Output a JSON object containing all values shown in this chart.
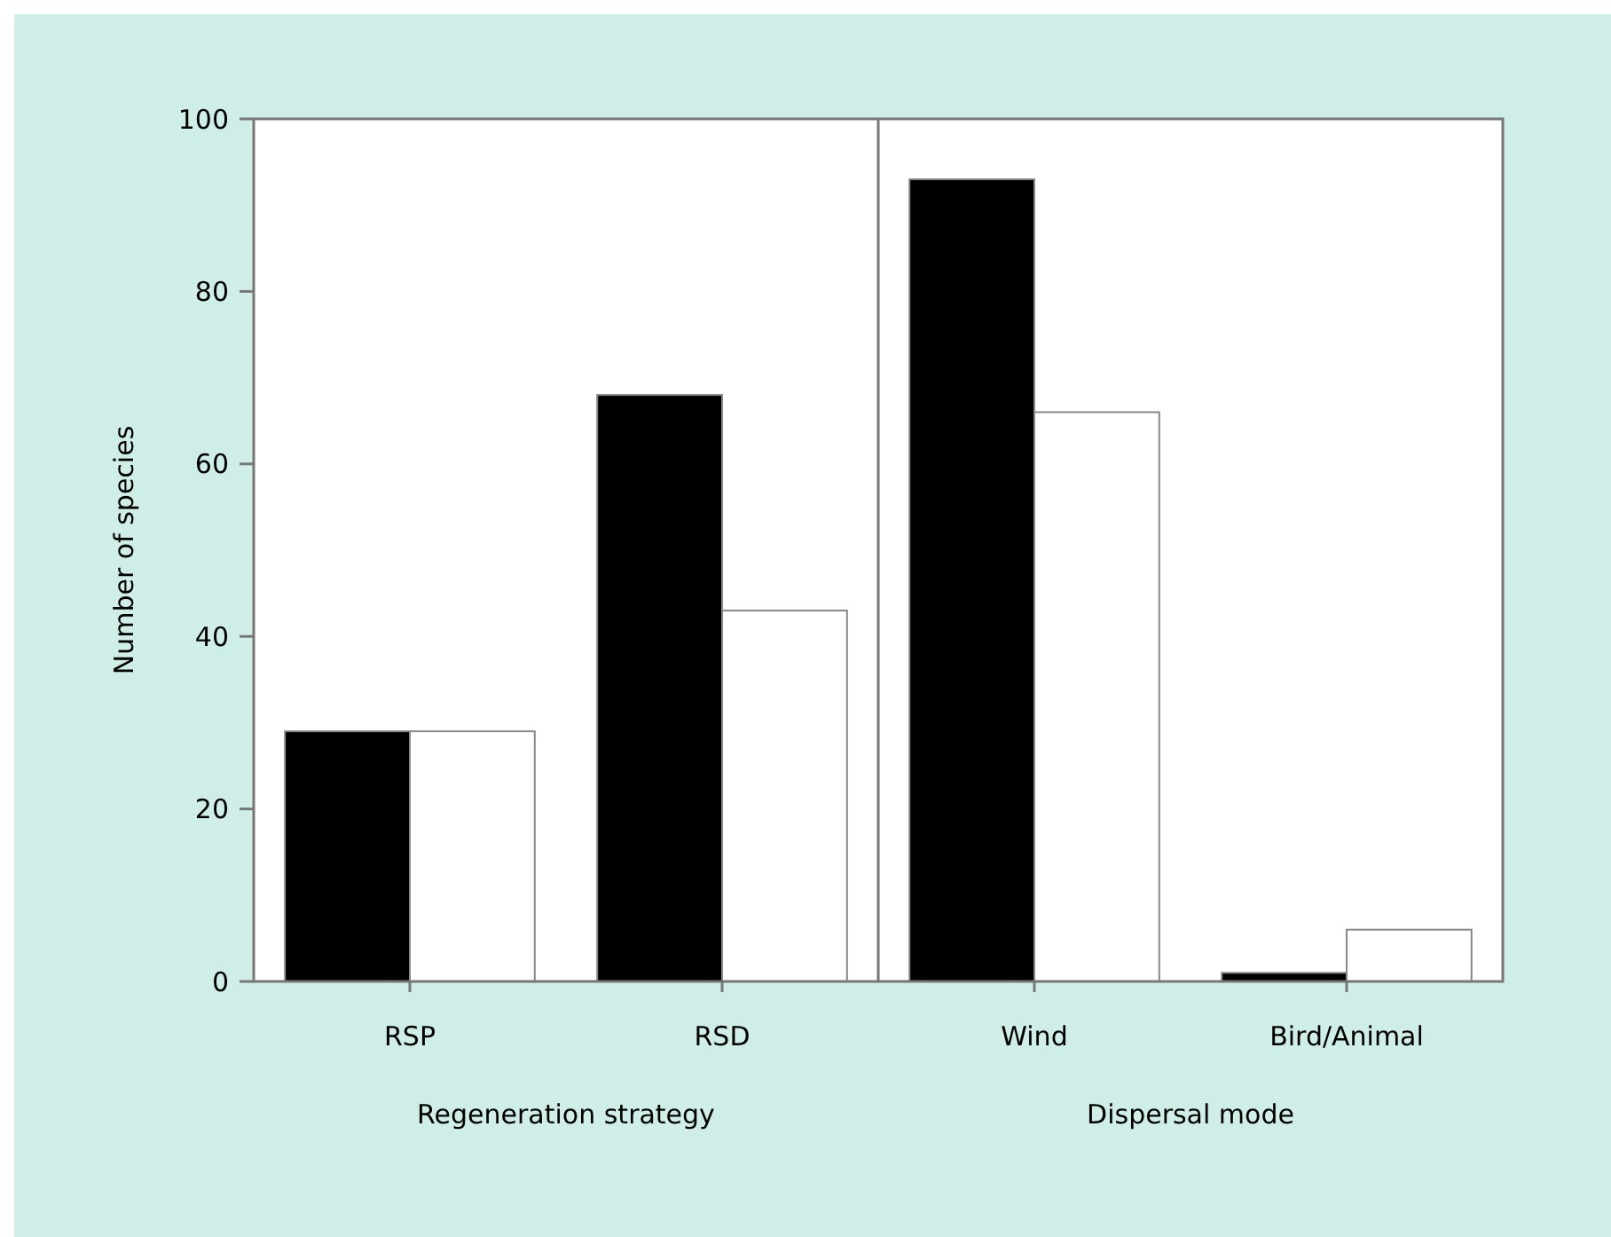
{
  "chart_data": {
    "type": "bar",
    "ylabel": "Number of species",
    "categories": [
      "RSP",
      "RSD",
      "Wind",
      "Bird/Animal"
    ],
    "series": [
      {
        "color": "#000000",
        "values": [
          29,
          68,
          93,
          1
        ]
      },
      {
        "color": "#ffffff",
        "values": [
          29,
          43,
          66,
          6
        ]
      }
    ],
    "ylim": [
      0,
      100
    ],
    "yticks": [
      0,
      20,
      40,
      60,
      80,
      100
    ],
    "grid": false,
    "annotations": [
      "Regeneration strategy",
      "Dispersal mode"
    ]
  }
}
